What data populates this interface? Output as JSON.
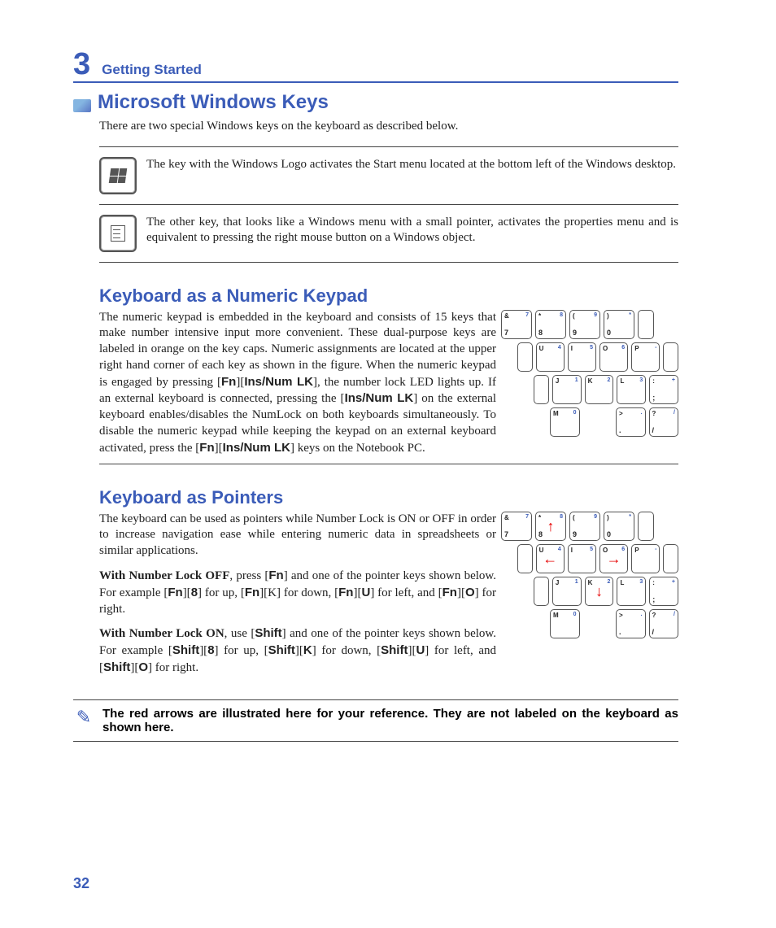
{
  "colors": {
    "accent": "#3b5cb8",
    "text": "#222222",
    "arrow": "#e60000",
    "rule": "#444444",
    "key_border": "#555555",
    "background": "#ffffff"
  },
  "typography": {
    "heading_family": "Arial, Helvetica, sans-serif",
    "body_family": "Times New Roman, Times, serif",
    "heading1_pt": 22,
    "subsection_pt": 20,
    "body_pt": 14,
    "chapter_num_pt": 34
  },
  "chapter": {
    "number": "3",
    "title": "Getting Started"
  },
  "page_number": "32",
  "section1": {
    "heading": "Microsoft Windows Keys",
    "intro": "There are two special Windows keys on the keyboard as described below.",
    "key1_text": "The key with the Windows Logo activates the Start menu located at the bottom left of the Windows desktop.",
    "key2_text": "The other key, that looks like a Windows menu with a small pointer, activates the properties menu and is equivalent to pressing the right mouse button on a Windows object."
  },
  "section2": {
    "heading": "Keyboard as a Numeric Keypad",
    "text_html": "The numeric keypad is embedded in the keyboard and consists of 15 keys that make number intensive input more convenient. These dual-purpose keys are labeled in orange on the key caps. Numeric assignments are located at the upper right hand corner of each key as shown in the figure. When the numeric keypad is engaged by pressing [<b class='sans'>Fn</b>][<b class='sans'>Ins/Num LK</b>], the number lock LED lights up. If an external keyboard is connected, pressing the [<b class='sans'>Ins/Num LK</b>] on the external keyboard enables/disables the NumLock on both keyboards simultaneously. To disable the numeric keypad while keeping the keypad on an external keyboard activated, press the [<b class='sans'>Fn</b>][<b class='sans'>Ins/Num LK</b>] keys on the Notebook PC."
  },
  "section3": {
    "heading": "Keyboard as Pointers",
    "p1": "The keyboard can be used as pointers while Number Lock is ON or OFF in order to increase navigation ease while entering numeric data in spreadsheets or similar applications.",
    "p2_html": "<b>With Number Lock OFF</b>, press [<b class='sans'>Fn</b>] and one of the pointer keys shown below. For example [<b class='sans'>Fn</b>][<b class='sans'>8</b>] for up, [<b class='sans'>Fn</b>][K] for down, [<b class='sans'>Fn</b>][<b class='sans'>U</b>] for left, and [<b class='sans'>Fn</b>][<b class='sans'>O</b>] for right.",
    "p3_html": "<b>With Number Lock ON</b>, use [<b class='sans'>Shift</b>] and one of the pointer keys shown below. For example [<b class='sans'>Shift</b>][<b class='sans'>8</b>] for up, [<b class='sans'>Shift</b>][<b class='sans'>K</b>] for down, [<b class='sans'>Shift</b>][<b class='sans'>U</b>] for left, and [<b class='sans'>Shift</b>][<b class='sans'>O</b>] for right."
  },
  "note": {
    "text": "The red arrows are illustrated here for your reference. They are not labeled on the keyboard as shown here."
  },
  "keypad": {
    "rows": [
      {
        "indent_keys": 0,
        "trailing_half": true,
        "keys": [
          {
            "tl": "&",
            "bl": "7",
            "tr": "7",
            "br": ""
          },
          {
            "tl": "*",
            "bl": "8",
            "tr": "8",
            "br": ""
          },
          {
            "tl": "(",
            "bl": "9",
            "tr": "9",
            "br": ""
          },
          {
            "tl": ")",
            "bl": "0",
            "tr": "*",
            "br": ""
          }
        ]
      },
      {
        "indent_keys": 0.5,
        "leading_half": true,
        "trailing_half": true,
        "keys": [
          {
            "tl": "U",
            "bl": "",
            "tr": "4",
            "br": ""
          },
          {
            "tl": "I",
            "bl": "",
            "tr": "5",
            "br": ""
          },
          {
            "tl": "O",
            "bl": "",
            "tr": "6",
            "br": ""
          },
          {
            "tl": "P",
            "bl": "",
            "tr": "-",
            "br": ""
          }
        ]
      },
      {
        "indent_keys": 1,
        "leading_half": true,
        "keys": [
          {
            "tl": "J",
            "bl": "",
            "tr": "1",
            "br": ""
          },
          {
            "tl": "K",
            "bl": "",
            "tr": "2",
            "br": ""
          },
          {
            "tl": "L",
            "bl": "",
            "tr": "3",
            "br": ""
          },
          {
            "tl": ":",
            "bl": ";",
            "tr": "+",
            "br": ""
          }
        ]
      },
      {
        "indent_keys": 1.5,
        "keys": [
          {
            "tl": "M",
            "bl": "",
            "tr": "0",
            "br": ""
          },
          {
            "blank": true
          },
          {
            "tl": ">",
            "bl": ".",
            "tr": ".",
            "br": ""
          },
          {
            "tl": "?",
            "bl": "/",
            "tr": "/",
            "br": ""
          }
        ]
      }
    ],
    "arrows_variant": {
      "8": "up",
      "U": "left",
      "O": "right",
      "K": "down"
    }
  }
}
